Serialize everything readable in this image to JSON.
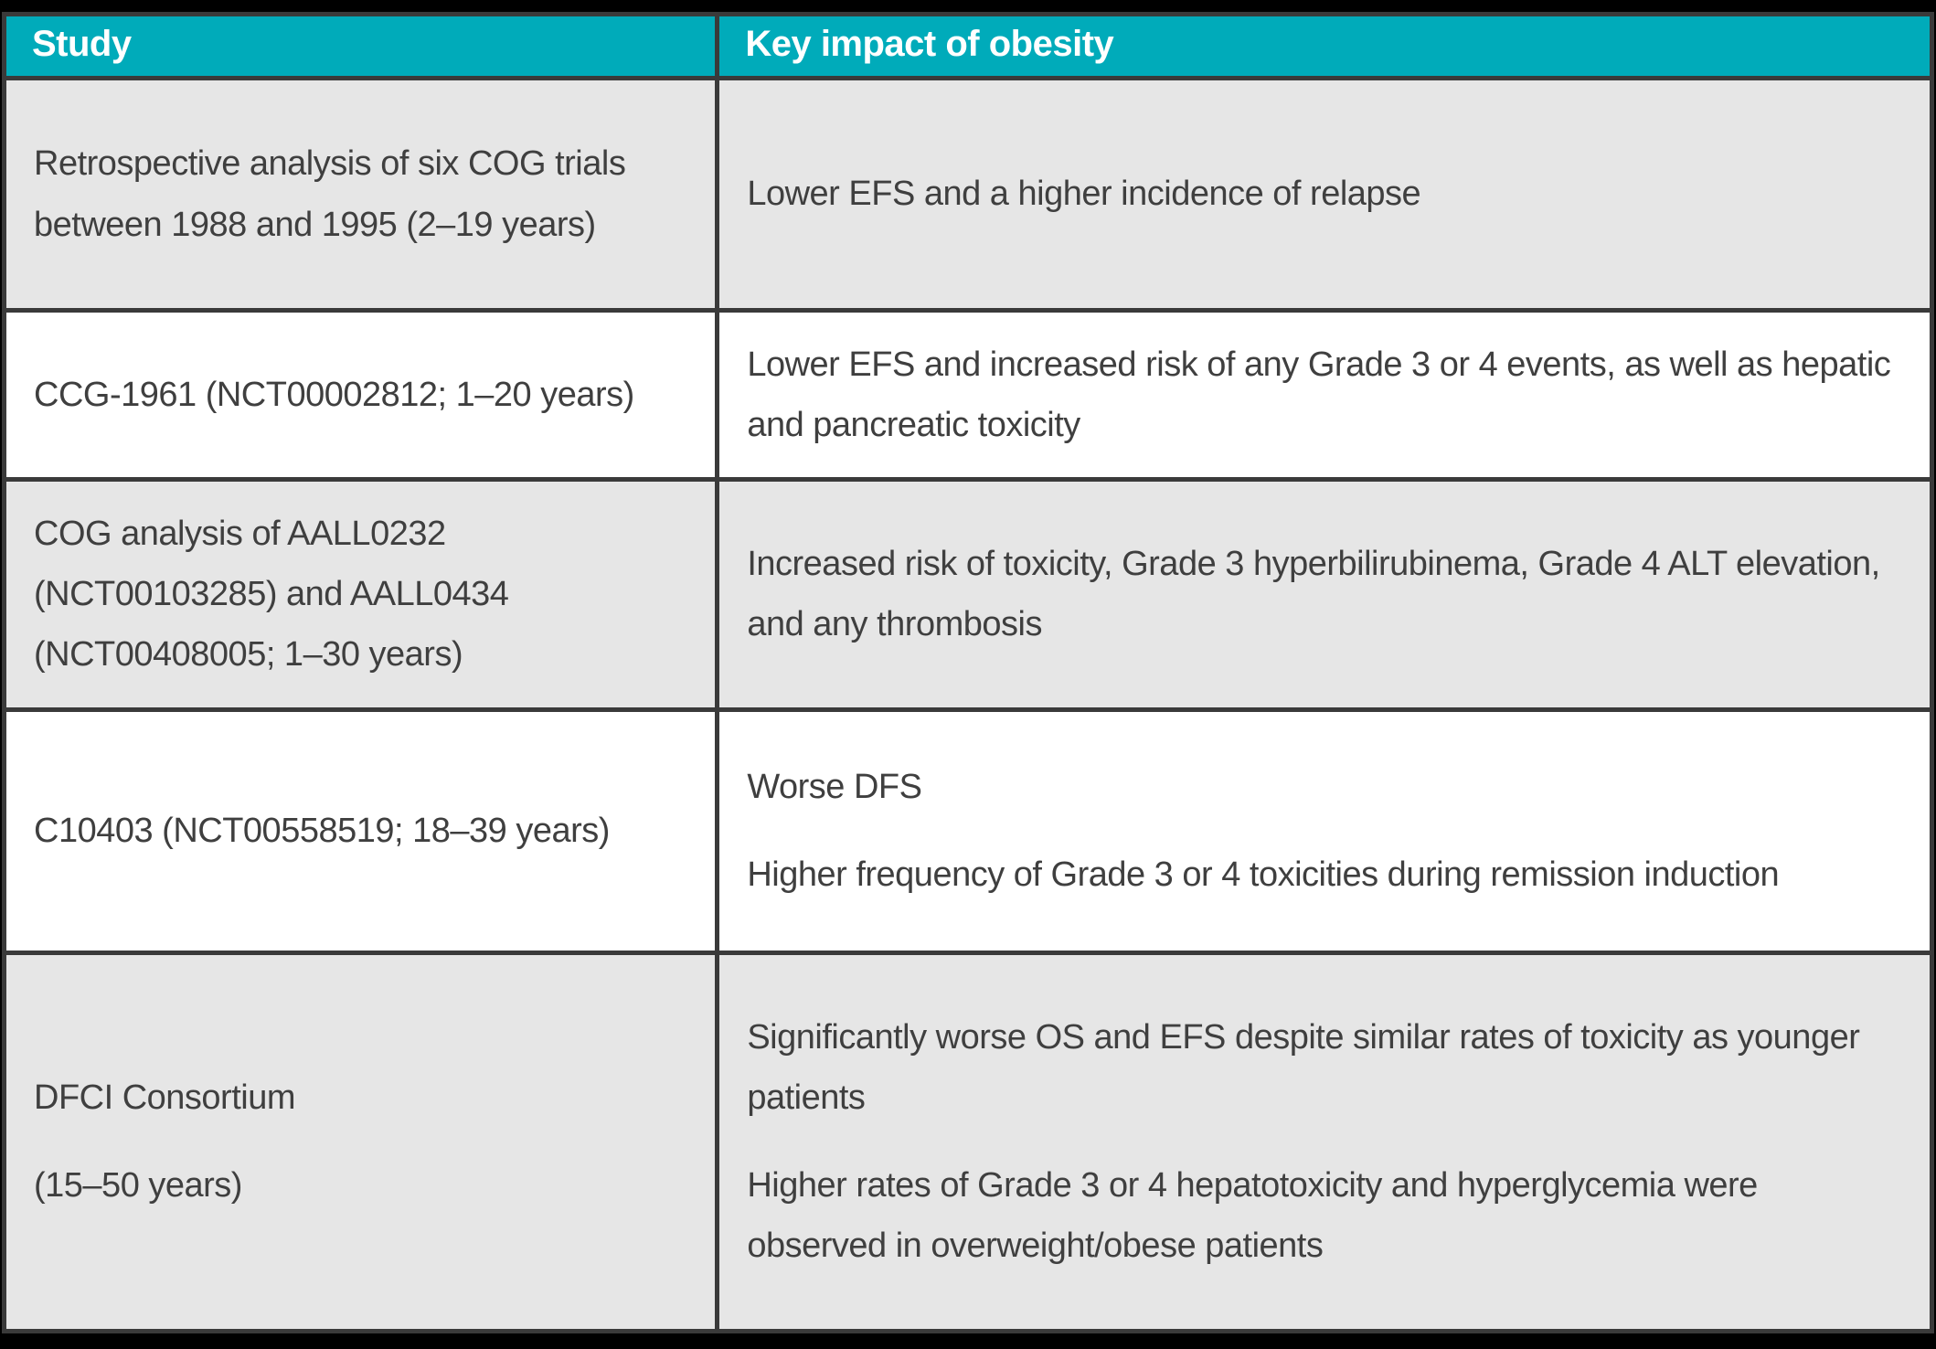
{
  "table": {
    "columns": [
      {
        "label": "Study"
      },
      {
        "label": "Key impact of obesity"
      }
    ],
    "rows": [
      {
        "study": [
          "Retrospective analysis of six COG trials between 1988 and 1995 (2–19 years)"
        ],
        "impact": [
          "Lower EFS and a higher incidence of relapse"
        ]
      },
      {
        "study": [
          "CCG-1961 (NCT00002812; 1–20 years)"
        ],
        "impact": [
          "Lower EFS and increased risk of any Grade 3 or 4 events, as well as hepatic and pancreatic toxicity"
        ]
      },
      {
        "study": [
          "COG analysis of AALL0232 (NCT00103285) and AALL0434 (NCT00408005; 1–30 years)"
        ],
        "impact": [
          "Increased risk of toxicity, Grade 3 hyperbilirubinema, Grade 4 ALT elevation, and any thrombosis"
        ]
      },
      {
        "study": [
          "C10403 (NCT00558519; 18–39 years)"
        ],
        "impact": [
          "Worse DFS",
          "Higher frequency of Grade 3 or 4 toxicities during remission induction"
        ]
      },
      {
        "study": [
          "DFCI Consortium",
          "(15–50 years)"
        ],
        "impact": [
          "Significantly worse OS and EFS despite similar rates of toxicity as younger patients",
          "Higher rates of Grade 3 or 4 hepatotoxicity and hyperglycemia were observed in overweight/obese patients"
        ]
      }
    ],
    "colors": {
      "page_bg": "#000000",
      "header_bg": "#00abba",
      "header_text": "#ffffff",
      "border": "#3a3a3a",
      "row_alt_bg": "#e6e6e6",
      "row_bg": "#ffffff",
      "body_text": "#3f3f3f"
    }
  }
}
